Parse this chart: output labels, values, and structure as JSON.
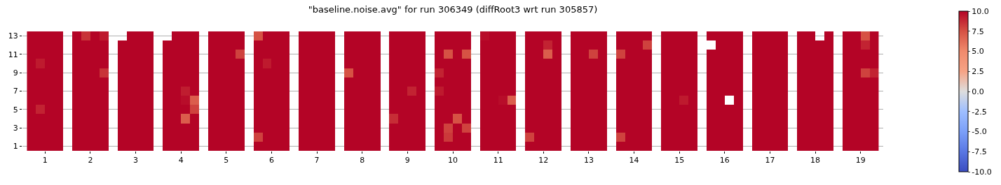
{
  "chart_data": {
    "type": "heatmap",
    "title": "\"baseline.noise.avg\" for run 306349 (diffRoot3 wrt run 305857)",
    "x": [
      0.7,
      0.9,
      1.1,
      1.3,
      1.5,
      1.7,
      1.9,
      2.1,
      2.3,
      2.5,
      2.7,
      2.9,
      3.1,
      3.3,
      3.5,
      3.7,
      3.9,
      4.1,
      4.3,
      4.5,
      4.7,
      4.9,
      5.1,
      5.3,
      5.5,
      5.7,
      5.9,
      6.1,
      6.3,
      6.5,
      6.7,
      6.9,
      7.1,
      7.3,
      7.5,
      7.7,
      7.9,
      8.1,
      8.3,
      8.5,
      8.7,
      8.9,
      9.1,
      9.3,
      9.5,
      9.7,
      9.9,
      10.1,
      10.3,
      10.5,
      10.7,
      10.9,
      11.1,
      11.3,
      11.5,
      11.7,
      11.9,
      12.1,
      12.3,
      12.5,
      12.7,
      12.9,
      13.1,
      13.3,
      13.5,
      13.7,
      13.9,
      14.1,
      14.3,
      14.5,
      14.7,
      14.9,
      15.1,
      15.3,
      15.5,
      15.7,
      15.9,
      16.1,
      16.3,
      16.5,
      16.7,
      16.9,
      17.1,
      17.3,
      17.5,
      17.7,
      17.9,
      18.1,
      18.3,
      18.5,
      18.7,
      18.9,
      19.1,
      19.3
    ],
    "xlim": [
      0.5,
      19.5
    ],
    "xticks": [
      1,
      2,
      3,
      4,
      5,
      6,
      7,
      8,
      9,
      10,
      11,
      12,
      13,
      14,
      15,
      16,
      17,
      18,
      19
    ],
    "y_categories": [
      "13",
      null,
      "11",
      null,
      "9",
      null,
      "7",
      null,
      "5",
      null,
      "3",
      null,
      "1"
    ],
    "cells": [
      [
        10,
        10,
        10,
        10,
        null,
        10,
        8.5,
        10,
        9.3,
        null,
        null,
        10,
        10,
        10,
        null,
        null,
        10,
        10,
        10,
        null,
        10,
        10,
        10,
        10,
        null,
        7.5,
        10,
        10,
        10,
        null,
        10,
        10,
        10,
        10,
        null,
        10,
        10,
        10,
        10,
        null,
        10,
        10,
        10,
        10,
        null,
        10,
        10,
        10,
        10,
        null,
        9.7,
        10,
        10,
        10,
        null,
        10,
        10,
        10,
        10,
        null,
        10,
        10,
        10,
        10,
        null,
        10,
        10,
        10,
        10,
        null,
        10,
        10,
        10,
        10,
        null,
        10,
        10,
        10,
        10,
        null,
        10,
        10,
        10,
        10,
        null,
        10,
        10,
        null,
        10,
        null,
        10,
        10,
        7.5,
        10
      ],
      [
        10,
        10,
        10,
        10,
        null,
        10,
        10,
        10,
        10,
        null,
        10,
        10,
        10,
        10,
        null,
        10,
        10,
        10,
        10,
        null,
        10,
        10,
        10,
        10,
        null,
        10,
        10,
        10,
        10,
        null,
        10,
        10,
        10,
        10,
        null,
        10,
        10,
        10,
        10,
        null,
        10,
        10,
        10,
        10,
        null,
        10,
        10,
        10,
        10,
        null,
        10,
        10,
        10,
        10,
        null,
        10,
        10,
        9,
        10,
        null,
        10,
        10,
        10,
        10,
        null,
        10,
        10,
        10,
        8,
        null,
        10,
        10,
        10,
        10,
        null,
        null,
        10,
        10,
        10,
        null,
        10,
        10,
        10,
        10,
        null,
        10,
        10,
        10,
        10,
        null,
        10,
        10,
        9,
        10
      ],
      [
        10,
        10,
        10,
        10,
        null,
        10,
        10,
        10,
        10,
        null,
        10,
        10,
        10,
        10,
        null,
        10,
        10,
        10,
        10,
        null,
        10,
        10,
        10,
        8,
        null,
        10,
        10,
        10,
        10,
        null,
        10,
        10,
        10,
        10,
        null,
        10,
        10,
        10,
        10,
        null,
        10,
        10,
        10,
        10,
        null,
        10,
        7.5,
        10,
        7.5,
        null,
        10,
        10,
        10,
        10,
        null,
        10,
        10,
        7,
        10,
        null,
        10,
        10,
        8,
        10,
        null,
        8,
        10,
        10,
        10,
        null,
        10,
        10,
        10,
        10,
        null,
        10,
        10,
        10,
        10,
        null,
        10,
        10,
        10,
        10,
        null,
        10,
        10,
        10,
        10,
        null,
        10,
        10,
        10,
        10
      ],
      [
        10,
        9.3,
        10,
        10,
        null,
        10,
        10,
        10,
        10,
        null,
        10,
        10,
        10,
        10,
        null,
        10,
        10,
        10,
        10,
        null,
        10,
        10,
        10,
        10,
        null,
        10,
        9.3,
        10,
        10,
        null,
        10,
        10,
        10,
        10,
        null,
        10,
        10,
        10,
        10,
        null,
        10,
        10,
        10,
        10,
        null,
        10,
        10,
        10,
        10,
        null,
        10,
        10,
        10,
        10,
        null,
        10,
        10,
        10,
        10,
        null,
        10,
        10,
        10,
        10,
        null,
        10,
        10,
        10,
        10,
        null,
        10,
        10,
        10,
        10,
        null,
        10,
        10,
        10,
        10,
        null,
        10,
        10,
        10,
        10,
        null,
        10,
        10,
        10,
        10,
        null,
        10,
        10,
        10,
        10
      ],
      [
        10,
        10,
        10,
        10,
        null,
        10,
        10,
        10,
        8.5,
        null,
        10,
        10,
        10,
        10,
        null,
        10,
        10,
        10,
        10,
        null,
        10,
        10,
        10,
        10,
        null,
        10,
        10,
        10,
        10,
        null,
        10,
        10,
        10,
        10,
        null,
        7.5,
        10,
        10,
        10,
        null,
        10,
        10,
        10,
        10,
        null,
        9,
        10,
        10,
        10,
        null,
        10,
        10,
        10,
        10,
        null,
        10,
        10,
        10,
        10,
        null,
        10,
        10,
        10,
        10,
        null,
        10,
        10,
        10,
        10,
        null,
        10,
        10,
        10,
        10,
        null,
        10,
        10,
        10,
        10,
        null,
        10,
        10,
        10,
        10,
        null,
        10,
        10,
        10,
        10,
        null,
        10,
        10,
        8,
        9
      ],
      [
        10,
        10,
        10,
        10,
        null,
        10,
        10,
        10,
        10,
        null,
        10,
        10,
        10,
        10,
        null,
        10,
        10,
        10,
        10,
        null,
        10,
        10,
        10,
        10,
        null,
        10,
        10,
        10,
        10,
        null,
        10,
        10,
        10,
        10,
        null,
        10,
        10,
        10,
        10,
        null,
        10,
        10,
        10,
        10,
        null,
        10,
        10,
        10,
        10,
        null,
        10,
        10,
        10,
        10,
        null,
        10,
        10,
        10,
        10,
        null,
        10,
        10,
        10,
        10,
        null,
        10,
        10,
        10,
        10,
        null,
        10,
        10,
        10,
        10,
        null,
        10,
        10,
        10,
        10,
        null,
        10,
        10,
        10,
        10,
        null,
        10,
        10,
        10,
        10,
        null,
        10,
        10,
        10,
        10
      ],
      [
        10,
        10,
        10,
        10,
        null,
        10,
        10,
        10,
        10,
        null,
        10,
        10,
        10,
        10,
        null,
        10,
        10,
        9.2,
        10,
        null,
        10,
        10,
        10,
        10,
        null,
        10,
        10,
        10,
        10,
        null,
        10,
        10,
        10,
        10,
        null,
        10,
        10,
        10,
        10,
        null,
        10,
        10,
        9,
        10,
        null,
        9.3,
        10,
        10,
        10,
        null,
        10,
        10,
        10,
        10,
        null,
        10,
        10,
        10,
        10,
        null,
        10,
        10,
        10,
        10,
        null,
        10,
        10,
        10,
        10,
        null,
        10,
        10,
        10,
        10,
        null,
        10,
        10,
        10,
        10,
        null,
        10,
        10,
        10,
        10,
        null,
        10,
        10,
        10,
        10,
        null,
        10,
        10,
        10,
        10
      ],
      [
        10,
        10,
        10,
        10,
        null,
        10,
        10,
        10,
        10,
        null,
        10,
        10,
        10,
        10,
        null,
        10,
        10,
        9.7,
        7,
        null,
        10,
        10,
        10,
        10,
        null,
        10,
        10,
        10,
        10,
        null,
        10,
        10,
        10,
        10,
        null,
        10,
        10,
        10,
        10,
        null,
        10,
        10,
        10,
        10,
        null,
        10,
        10,
        10,
        10,
        null,
        10,
        10,
        9.7,
        7,
        null,
        10,
        10,
        10,
        10,
        null,
        10,
        10,
        10,
        10,
        null,
        10,
        10,
        10,
        10,
        null,
        10,
        10,
        9.3,
        10,
        null,
        10,
        10,
        null,
        10,
        null,
        10,
        10,
        10,
        10,
        null,
        10,
        10,
        10,
        10,
        null,
        10,
        10,
        10,
        10
      ],
      [
        10,
        9,
        10,
        10,
        null,
        10,
        10,
        10,
        10,
        null,
        10,
        10,
        10,
        10,
        null,
        10,
        10,
        10,
        8,
        null,
        10,
        10,
        10,
        10,
        null,
        10,
        10,
        10,
        10,
        null,
        10,
        10,
        10,
        10,
        null,
        10,
        10,
        10,
        10,
        null,
        10,
        10,
        10,
        10,
        null,
        10,
        10,
        10,
        10,
        null,
        10,
        10,
        10,
        10,
        null,
        10,
        10,
        10,
        10,
        null,
        10,
        10,
        10,
        10,
        null,
        10,
        10,
        10,
        10,
        null,
        10,
        10,
        10,
        10,
        null,
        10,
        10,
        10,
        10,
        null,
        10,
        10,
        10,
        10,
        null,
        10,
        10,
        10,
        10,
        null,
        10,
        10,
        10,
        10
      ],
      [
        10,
        10,
        10,
        10,
        null,
        10,
        10,
        10,
        10,
        null,
        10,
        10,
        10,
        10,
        null,
        10,
        10,
        7,
        10,
        null,
        10,
        10,
        10,
        10,
        null,
        10,
        10,
        10,
        10,
        null,
        10,
        10,
        10,
        10,
        null,
        10,
        10,
        10,
        10,
        null,
        8.7,
        10,
        10,
        10,
        null,
        10,
        10,
        7.5,
        10,
        null,
        10,
        10,
        10,
        10,
        null,
        10,
        10,
        10,
        10,
        null,
        10,
        10,
        10,
        10,
        null,
        10,
        10,
        10,
        10,
        null,
        10,
        10,
        10,
        10,
        null,
        10,
        10,
        10,
        10,
        null,
        10,
        10,
        10,
        10,
        null,
        10,
        10,
        10,
        10,
        null,
        10,
        10,
        10,
        10
      ],
      [
        10,
        10,
        10,
        10,
        null,
        10,
        10,
        10,
        10,
        null,
        10,
        10,
        10,
        10,
        null,
        10,
        10,
        10,
        10,
        null,
        10,
        10,
        10,
        10,
        null,
        10,
        10,
        10,
        10,
        null,
        10,
        10,
        10,
        10,
        null,
        10,
        10,
        10,
        10,
        null,
        10,
        10,
        10,
        10,
        null,
        10,
        8,
        10,
        8,
        null,
        10,
        10,
        10,
        10,
        null,
        10,
        10,
        10,
        10,
        null,
        10,
        10,
        10,
        10,
        null,
        10,
        10,
        10,
        10,
        null,
        10,
        10,
        10,
        10,
        null,
        10,
        10,
        10,
        10,
        null,
        10,
        10,
        10,
        10,
        null,
        10,
        10,
        10,
        10,
        null,
        10,
        10,
        10,
        10
      ],
      [
        10,
        10,
        10,
        10,
        null,
        10,
        10,
        10,
        10,
        null,
        10,
        10,
        10,
        10,
        null,
        10,
        10,
        10,
        10,
        null,
        10,
        10,
        10,
        10,
        null,
        8,
        10,
        10,
        10,
        null,
        10,
        10,
        10,
        10,
        null,
        10,
        10,
        10,
        10,
        null,
        10,
        10,
        10,
        10,
        null,
        10,
        8.3,
        10,
        10,
        null,
        10,
        10,
        10,
        10,
        null,
        8,
        10,
        10,
        10,
        null,
        10,
        10,
        10,
        10,
        null,
        8,
        10,
        10,
        10,
        null,
        10,
        10,
        10,
        10,
        null,
        10,
        10,
        10,
        10,
        null,
        10,
        10,
        10,
        10,
        null,
        10,
        10,
        10,
        10,
        null,
        10,
        10,
        10,
        10
      ],
      [
        10,
        10,
        10,
        10,
        null,
        10,
        10,
        10,
        10,
        null,
        10,
        10,
        10,
        10,
        null,
        10,
        10,
        10,
        10,
        null,
        10,
        10,
        10,
        10,
        null,
        10,
        10,
        10,
        10,
        null,
        10,
        10,
        10,
        10,
        null,
        10,
        10,
        10,
        10,
        null,
        10,
        10,
        10,
        10,
        null,
        10,
        10,
        10,
        10,
        null,
        10,
        10,
        10,
        10,
        null,
        10,
        10,
        10,
        10,
        null,
        10,
        10,
        10,
        10,
        null,
        10,
        10,
        10,
        10,
        null,
        10,
        10,
        10,
        10,
        null,
        10,
        10,
        10,
        10,
        null,
        10,
        10,
        10,
        10,
        null,
        10,
        10,
        10,
        10,
        null,
        10,
        10,
        10,
        10
      ]
    ],
    "clim": [
      -10,
      10
    ],
    "cticks": [
      {
        "value": -10,
        "label": "-10.0"
      },
      {
        "value": -7.5,
        "label": "-7.5"
      },
      {
        "value": -5,
        "label": "-5.0"
      },
      {
        "value": -2.5,
        "label": "-2.5"
      },
      {
        "value": 0,
        "label": "0.0"
      },
      {
        "value": 2.5,
        "label": "2.5"
      },
      {
        "value": 5,
        "label": "5.0"
      },
      {
        "value": 7.5,
        "label": "7.5"
      },
      {
        "value": 10,
        "label": "10.0"
      }
    ],
    "grid": "y"
  }
}
